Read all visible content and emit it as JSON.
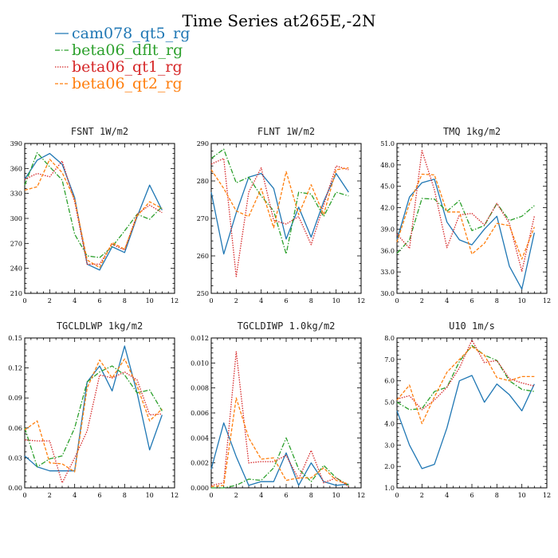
{
  "title": "Time Series at265E,-2N",
  "colors": {
    "cam078_qt5_rg": "#1f77b4",
    "beta06_dflt_rg": "#2ca02c",
    "beta06_qt1_rg": "#d62728",
    "beta06_qt2_rg": "#ff7f0e"
  },
  "legend": [
    {
      "name": "cam078_qt5_rg",
      "style": "solid"
    },
    {
      "name": "beta06_dflt_rg",
      "style": "dashdot"
    },
    {
      "name": "beta06_qt1_rg",
      "style": "dotted"
    },
    {
      "name": "beta06_qt2_rg",
      "style": "dashed"
    }
  ],
  "chart_data": [
    {
      "type": "line",
      "title": "FSNT  1W/m2",
      "x": [
        0,
        1,
        2,
        3,
        4,
        5,
        6,
        7,
        8,
        9,
        10,
        11
      ],
      "xlim": [
        0,
        12
      ],
      "xticks": [
        "0",
        "2",
        "4",
        "6",
        "8",
        "10",
        "12"
      ],
      "ylim": [
        210,
        390
      ],
      "yticks": [
        "210",
        "240",
        "270",
        "300",
        "330",
        "360",
        "390"
      ],
      "series": [
        {
          "name": "cam078_qt5_rg",
          "values": [
            347,
            370,
            378,
            365,
            325,
            245,
            238,
            266,
            259,
            302,
            340,
            310
          ]
        },
        {
          "name": "beta06_dflt_rg",
          "values": [
            340,
            379,
            362,
            346,
            281,
            255,
            253,
            266,
            285,
            305,
            299,
            314
          ]
        },
        {
          "name": "beta06_qt1_rg",
          "values": [
            347,
            354,
            350,
            369,
            320,
            245,
            245,
            269,
            262,
            305,
            316,
            307
          ]
        },
        {
          "name": "beta06_qt2_rg",
          "values": [
            334,
            338,
            371,
            355,
            323,
            250,
            241,
            271,
            263,
            303,
            320,
            312
          ]
        }
      ]
    },
    {
      "type": "line",
      "title": "FLNT  1W/m2",
      "x": [
        0,
        1,
        2,
        3,
        4,
        5,
        6,
        7,
        8,
        9,
        10,
        11
      ],
      "xlim": [
        0,
        12
      ],
      "xticks": [
        "0",
        "2",
        "4",
        "6",
        "8",
        "10",
        "12"
      ],
      "ylim": [
        250,
        290
      ],
      "yticks": [
        "250",
        "260",
        "270",
        "280",
        "290"
      ],
      "series": [
        {
          "name": "cam078_qt5_rg",
          "values": [
            277,
            260.5,
            271.5,
            281,
            282,
            278,
            264.5,
            273,
            265,
            274.5,
            282,
            277
          ]
        },
        {
          "name": "beta06_dflt_rg",
          "values": [
            286,
            288.5,
            279.5,
            281,
            276,
            272,
            260.5,
            277,
            276.5,
            270.5,
            277,
            276
          ]
        },
        {
          "name": "beta06_qt1_rg",
          "values": [
            284.5,
            286,
            254.5,
            277,
            283.5,
            269.5,
            268.5,
            270.5,
            263,
            273.5,
            284,
            283
          ]
        },
        {
          "name": "beta06_qt2_rg",
          "values": [
            283,
            278,
            272,
            270.5,
            278,
            267.5,
            282.5,
            271,
            279,
            271,
            283,
            283.5
          ]
        }
      ]
    },
    {
      "type": "line",
      "title": "TMQ  1kg/m2",
      "x": [
        0,
        1,
        2,
        3,
        4,
        5,
        6,
        7,
        8,
        9,
        10,
        11
      ],
      "xlim": [
        0,
        12
      ],
      "xticks": [
        "0",
        "2",
        "4",
        "6",
        "8",
        "10",
        "12"
      ],
      "ylim": [
        30.0,
        51.0
      ],
      "yticks": [
        "30.0",
        "33.0",
        "36.0",
        "39.0",
        "42.0",
        "45.0",
        "48.0",
        "51.0"
      ],
      "series": [
        {
          "name": "cam078_qt5_rg",
          "values": [
            37.5,
            43.5,
            45.5,
            46,
            40,
            37.5,
            36.8,
            39,
            40.8,
            33.8,
            30.6,
            38.5
          ]
        },
        {
          "name": "beta06_dflt_rg",
          "values": [
            35.6,
            37.5,
            43.3,
            43.2,
            41.5,
            43,
            38.8,
            39.5,
            42.6,
            40.2,
            40.8,
            42.3
          ]
        },
        {
          "name": "beta06_qt1_rg",
          "values": [
            38.3,
            36.3,
            50,
            44.5,
            36.4,
            41,
            41.2,
            39.6,
            42.6,
            39.8,
            33.1,
            40.8
          ]
        },
        {
          "name": "beta06_qt2_rg",
          "values": [
            37.2,
            42.6,
            46.7,
            46.6,
            41.4,
            41.4,
            35.5,
            37,
            39.8,
            39.5,
            34.8,
            39.3
          ]
        }
      ]
    },
    {
      "type": "line",
      "title": "TGCLDLWP  1kg/m2",
      "x": [
        0,
        1,
        2,
        3,
        4,
        5,
        6,
        7,
        8,
        9,
        10,
        11
      ],
      "xlim": [
        0,
        12
      ],
      "xticks": [
        "0",
        "2",
        "4",
        "6",
        "8",
        "10",
        "12"
      ],
      "ylim": [
        0.0,
        0.15
      ],
      "yticks": [
        "0.00",
        "0.03",
        "0.06",
        "0.09",
        "0.12",
        "0.15"
      ],
      "series": [
        {
          "name": "cam078_qt5_rg",
          "values": [
            0.032,
            0.021,
            0.017,
            0.017,
            0.017,
            0.106,
            0.122,
            0.097,
            0.142,
            0.095,
            0.038,
            0.073
          ]
        },
        {
          "name": "beta06_dflt_rg",
          "values": [
            0.06,
            0.021,
            0.029,
            0.032,
            0.06,
            0.106,
            0.116,
            0.122,
            0.113,
            0.095,
            0.098,
            0.077
          ]
        },
        {
          "name": "beta06_qt1_rg",
          "values": [
            0.048,
            0.047,
            0.047,
            0.005,
            0.03,
            0.057,
            0.113,
            0.11,
            0.116,
            0.108,
            0.073,
            0.074
          ]
        },
        {
          "name": "beta06_qt2_rg",
          "values": [
            0.058,
            0.067,
            0.025,
            0.024,
            0.016,
            0.1,
            0.128,
            0.11,
            0.129,
            0.102,
            0.067,
            0.079
          ]
        }
      ]
    },
    {
      "type": "line",
      "title": "TGCLDIWP  1.0kg/m2",
      "x": [
        0,
        1,
        2,
        3,
        4,
        5,
        6,
        7,
        8,
        9,
        10,
        11
      ],
      "xlim": [
        0,
        12
      ],
      "xticks": [
        "0",
        "2",
        "4",
        "6",
        "8",
        "10",
        "12"
      ],
      "ylim": [
        0.0,
        0.012
      ],
      "yticks": [
        "0.000",
        "0.002",
        "0.004",
        "0.006",
        "0.008",
        "0.010",
        "0.012"
      ],
      "series": [
        {
          "name": "cam078_qt5_rg",
          "values": [
            0.0015,
            0.0052,
            0.0025,
            0.0002,
            0.0005,
            0.0005,
            0.0028,
            0.0002,
            0.002,
            0.0005,
            0.0002,
            0.0003
          ]
        },
        {
          "name": "beta06_dflt_rg",
          "values": [
            0.0,
            0.0,
            0.0002,
            0.0007,
            0.0006,
            0.0016,
            0.004,
            0.0015,
            0.0005,
            0.0018,
            0.0008,
            0.0002
          ]
        },
        {
          "name": "beta06_qt1_rg",
          "values": [
            0.0002,
            0.0004,
            0.0109,
            0.002,
            0.0021,
            0.0021,
            0.0026,
            0.0007,
            0.003,
            0.0004,
            0.0008,
            0.0001
          ]
        },
        {
          "name": "beta06_qt2_rg",
          "values": [
            0.0001,
            0.0002,
            0.0072,
            0.004,
            0.0023,
            0.0024,
            0.0006,
            0.0008,
            0.0008,
            0.0016,
            0.0006,
            0.0003
          ]
        }
      ]
    },
    {
      "type": "line",
      "title": "U10  1m/s",
      "x": [
        0,
        1,
        2,
        3,
        4,
        5,
        6,
        7,
        8,
        9,
        10,
        11
      ],
      "xlim": [
        0,
        12
      ],
      "xticks": [
        "0",
        "2",
        "4",
        "6",
        "8",
        "10",
        "12"
      ],
      "ylim": [
        1.0,
        8.0
      ],
      "yticks": [
        "1.0",
        "2.0",
        "3.0",
        "4.0",
        "5.0",
        "6.0",
        "7.0",
        "8.0"
      ],
      "series": [
        {
          "name": "cam078_qt5_rg",
          "values": [
            4.6,
            3.0,
            1.9,
            2.1,
            3.8,
            6.0,
            6.25,
            5.0,
            5.85,
            5.35,
            4.6,
            5.85
          ]
        },
        {
          "name": "beta06_dflt_rg",
          "values": [
            5.0,
            4.65,
            4.7,
            5.5,
            5.7,
            6.9,
            7.65,
            7.2,
            6.95,
            6.0,
            5.6,
            5.5
          ]
        },
        {
          "name": "beta06_qt1_rg",
          "values": [
            5.15,
            5.3,
            4.65,
            5.1,
            5.7,
            6.6,
            7.9,
            6.85,
            6.95,
            6.1,
            5.9,
            5.75
          ]
        },
        {
          "name": "beta06_qt2_rg",
          "values": [
            5.1,
            5.8,
            4.0,
            5.25,
            6.4,
            7.0,
            7.6,
            7.2,
            6.15,
            6.0,
            6.2,
            6.2
          ]
        }
      ]
    }
  ]
}
